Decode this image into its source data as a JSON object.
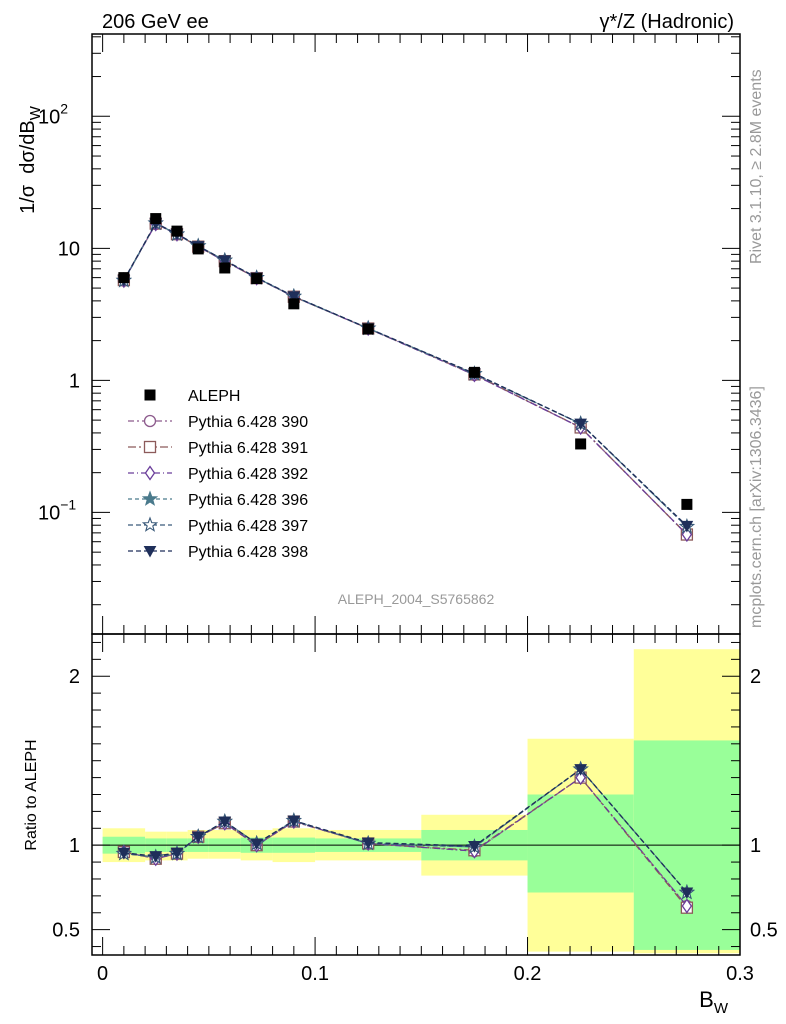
{
  "header": {
    "left": "206 GeV ee",
    "right": "γ*/Z (Hadronic)"
  },
  "side_labels": {
    "rivet": "Rivet 3.1.10, ≥ 2.8M events",
    "site": "mcplots.cern.ch [arXiv:1306.3436]"
  },
  "watermark": "ALEPH_2004_S5765862",
  "chart_data": [
    {
      "type": "scatter",
      "title": "",
      "ylabel": "1/σ dσ/dB_W",
      "xlabel": "B_W",
      "y_scale": "log",
      "xlim": [
        -0.005,
        0.3
      ],
      "ylim": [
        0.012,
        420
      ],
      "y_ticks": [
        {
          "value": 0.1,
          "label": "10",
          "exp": "−1"
        },
        {
          "value": 1,
          "label": "1",
          "exp": ""
        },
        {
          "value": 10,
          "label": "10",
          "exp": ""
        },
        {
          "value": 100,
          "label": "10",
          "exp": "2"
        }
      ],
      "x": [
        0.01,
        0.025,
        0.035,
        0.045,
        0.0575,
        0.0725,
        0.09,
        0.125,
        0.175,
        0.225,
        0.275
      ],
      "data": {
        "name": "ALEPH",
        "values": [
          6.0,
          16.8,
          13.5,
          9.9,
          7.1,
          5.9,
          3.8,
          2.45,
          1.15,
          0.33,
          0.115
        ]
      },
      "series": [
        {
          "name": "Pythia 6.428 390",
          "color": "#8c5a8c",
          "marker": "circle",
          "values": [
            5.7,
            15.3,
            12.8,
            10.3,
            8.0,
            5.95,
            4.3,
            2.47,
            1.1,
            0.44,
            0.068
          ]
        },
        {
          "name": "Pythia 6.428 391",
          "color": "#8c5a5a",
          "marker": "square",
          "values": [
            5.75,
            15.4,
            12.8,
            10.3,
            8.0,
            5.95,
            4.3,
            2.47,
            1.11,
            0.44,
            0.068
          ]
        },
        {
          "name": "Pythia 6.428 392",
          "color": "#6a3d9a",
          "marker": "diamond",
          "values": [
            5.7,
            15.3,
            12.8,
            10.3,
            8.0,
            5.95,
            4.3,
            2.47,
            1.1,
            0.44,
            0.068
          ]
        },
        {
          "name": "Pythia 6.428 396",
          "color": "#4a7a8c",
          "marker": "star-filled",
          "values": [
            5.7,
            15.5,
            12.8,
            10.4,
            8.1,
            5.98,
            4.32,
            2.48,
            1.12,
            0.47,
            0.078
          ]
        },
        {
          "name": "Pythia 6.428 397",
          "color": "#3a5a7a",
          "marker": "star-open",
          "values": [
            5.7,
            15.5,
            12.8,
            10.4,
            8.1,
            5.98,
            4.32,
            2.48,
            1.12,
            0.47,
            0.078
          ]
        },
        {
          "name": "Pythia 6.428 398",
          "color": "#1f2f5a",
          "marker": "triangle-down",
          "values": [
            5.75,
            15.5,
            12.9,
            10.4,
            8.1,
            6.0,
            4.33,
            2.48,
            1.13,
            0.47,
            0.079
          ]
        }
      ]
    },
    {
      "type": "scatter",
      "title": "",
      "ylabel": "Ratio to ALEPH",
      "xlabel": "B_W",
      "xlim": [
        -0.005,
        0.3
      ],
      "ylim": [
        0.35,
        2.25
      ],
      "y_ticks": [
        0.5,
        1,
        2
      ],
      "x_ticks": [
        0,
        0.1,
        0.2,
        0.3
      ],
      "x_tick_labels": [
        "0",
        "0.1",
        "0.2",
        "0.3"
      ],
      "bands": [
        {
          "x0": 0.0,
          "x1": 0.02,
          "green": [
            0.95,
            1.05
          ],
          "yellow": [
            0.9,
            1.1
          ]
        },
        {
          "x0": 0.02,
          "x1": 0.03,
          "green": [
            0.96,
            1.04
          ],
          "yellow": [
            0.91,
            1.08
          ]
        },
        {
          "x0": 0.03,
          "x1": 0.04,
          "green": [
            0.96,
            1.04
          ],
          "yellow": [
            0.91,
            1.08
          ]
        },
        {
          "x0": 0.04,
          "x1": 0.05,
          "green": [
            0.96,
            1.04
          ],
          "yellow": [
            0.92,
            1.09
          ]
        },
        {
          "x0": 0.05,
          "x1": 0.065,
          "green": [
            0.96,
            1.04
          ],
          "yellow": [
            0.92,
            1.09
          ]
        },
        {
          "x0": 0.065,
          "x1": 0.08,
          "green": [
            0.955,
            1.045
          ],
          "yellow": [
            0.91,
            1.09
          ]
        },
        {
          "x0": 0.08,
          "x1": 0.1,
          "green": [
            0.955,
            1.045
          ],
          "yellow": [
            0.9,
            1.1
          ]
        },
        {
          "x0": 0.1,
          "x1": 0.15,
          "green": [
            0.96,
            1.04
          ],
          "yellow": [
            0.91,
            1.09
          ]
        },
        {
          "x0": 0.15,
          "x1": 0.2,
          "green": [
            0.91,
            1.09
          ],
          "yellow": [
            0.82,
            1.18
          ]
        },
        {
          "x0": 0.2,
          "x1": 0.25,
          "green": [
            0.72,
            1.3
          ],
          "yellow": [
            0.37,
            1.63
          ]
        },
        {
          "x0": 0.25,
          "x1": 0.3,
          "green": [
            0.38,
            1.62
          ],
          "yellow": [
            0.36,
            2.16
          ]
        }
      ],
      "x": [
        0.01,
        0.025,
        0.035,
        0.045,
        0.0575,
        0.0725,
        0.09,
        0.125,
        0.175,
        0.225,
        0.275
      ],
      "series": [
        {
          "name": "Pythia 6.428 390",
          "color": "#8c5a8c",
          "marker": "circle",
          "values": [
            0.96,
            0.92,
            0.95,
            1.05,
            1.13,
            1.0,
            1.14,
            1.01,
            0.965,
            1.4,
            0.64
          ]
        },
        {
          "name": "Pythia 6.428 391",
          "color": "#8c5a5a",
          "marker": "square",
          "values": [
            0.96,
            0.92,
            0.95,
            1.05,
            1.13,
            1.0,
            1.14,
            1.01,
            0.97,
            1.4,
            0.63
          ]
        },
        {
          "name": "Pythia 6.428 392",
          "color": "#6a3d9a",
          "marker": "diamond",
          "values": [
            0.96,
            0.92,
            0.95,
            1.05,
            1.13,
            1.0,
            1.14,
            1.01,
            0.965,
            1.4,
            0.64
          ]
        },
        {
          "name": "Pythia 6.428 396",
          "color": "#4a7a8c",
          "marker": "star-filled",
          "values": [
            0.95,
            0.93,
            0.95,
            1.05,
            1.14,
            1.01,
            1.145,
            1.01,
            0.99,
            1.45,
            0.72
          ]
        },
        {
          "name": "Pythia 6.428 397",
          "color": "#3a5a7a",
          "marker": "star-open",
          "values": [
            0.95,
            0.93,
            0.95,
            1.05,
            1.14,
            1.01,
            1.145,
            1.01,
            0.99,
            1.45,
            0.72
          ]
        },
        {
          "name": "Pythia 6.428 398",
          "color": "#1f2f5a",
          "marker": "triangle-down",
          "values": [
            0.955,
            0.935,
            0.955,
            1.05,
            1.14,
            1.01,
            1.145,
            1.015,
            0.995,
            1.45,
            0.72
          ]
        }
      ]
    }
  ],
  "colors": {
    "band_green": "#99ff99",
    "band_yellow": "#ffff99",
    "data": "#000000"
  }
}
